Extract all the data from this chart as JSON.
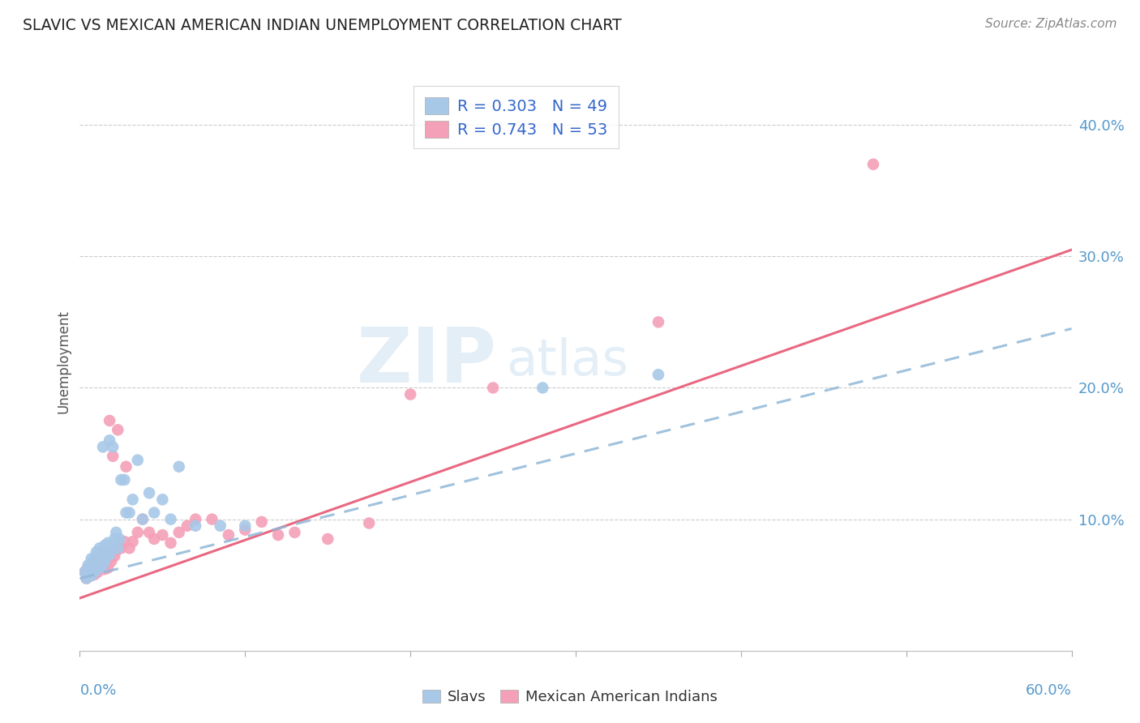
{
  "title": "SLAVIC VS MEXICAN AMERICAN INDIAN UNEMPLOYMENT CORRELATION CHART",
  "source": "Source: ZipAtlas.com",
  "ylabel": "Unemployment",
  "ylabel_right_ticks": [
    "10.0%",
    "20.0%",
    "30.0%",
    "40.0%"
  ],
  "ylabel_right_vals": [
    0.1,
    0.2,
    0.3,
    0.4
  ],
  "xmin": 0.0,
  "xmax": 0.6,
  "ymin": 0.0,
  "ymax": 0.44,
  "slavs_R": 0.303,
  "slavs_N": 49,
  "mexican_R": 0.743,
  "mexican_N": 53,
  "slavs_color": "#a8c8e8",
  "mexican_color": "#f4a0b8",
  "slavs_line_color": "#90b8d8",
  "mexican_line_color": "#e8607a",
  "legend_text_color": "#3366cc",
  "slavs_line_x0": 0.0,
  "slavs_line_y0": 0.055,
  "slavs_line_x1": 0.6,
  "slavs_line_y1": 0.245,
  "mexican_line_x0": 0.0,
  "mexican_line_y0": 0.04,
  "mexican_line_x1": 0.6,
  "mexican_line_y1": 0.305,
  "slavs_x": [
    0.003,
    0.004,
    0.005,
    0.005,
    0.006,
    0.007,
    0.007,
    0.008,
    0.008,
    0.009,
    0.01,
    0.01,
    0.01,
    0.011,
    0.012,
    0.012,
    0.013,
    0.014,
    0.014,
    0.015,
    0.015,
    0.016,
    0.016,
    0.017,
    0.018,
    0.018,
    0.019,
    0.02,
    0.021,
    0.022,
    0.023,
    0.024,
    0.025,
    0.027,
    0.028,
    0.03,
    0.032,
    0.035,
    0.038,
    0.042,
    0.045,
    0.05,
    0.055,
    0.06,
    0.07,
    0.085,
    0.1,
    0.28,
    0.35
  ],
  "slavs_y": [
    0.06,
    0.055,
    0.058,
    0.065,
    0.062,
    0.057,
    0.07,
    0.063,
    0.068,
    0.06,
    0.072,
    0.065,
    0.075,
    0.068,
    0.063,
    0.078,
    0.07,
    0.065,
    0.155,
    0.068,
    0.08,
    0.072,
    0.076,
    0.082,
    0.073,
    0.16,
    0.078,
    0.155,
    0.085,
    0.09,
    0.078,
    0.085,
    0.13,
    0.13,
    0.105,
    0.105,
    0.115,
    0.145,
    0.1,
    0.12,
    0.105,
    0.115,
    0.1,
    0.14,
    0.095,
    0.095,
    0.095,
    0.2,
    0.21
  ],
  "mexican_x": [
    0.003,
    0.004,
    0.005,
    0.005,
    0.006,
    0.007,
    0.007,
    0.008,
    0.008,
    0.009,
    0.01,
    0.01,
    0.011,
    0.012,
    0.013,
    0.014,
    0.015,
    0.015,
    0.016,
    0.017,
    0.018,
    0.018,
    0.019,
    0.02,
    0.021,
    0.022,
    0.023,
    0.025,
    0.027,
    0.028,
    0.03,
    0.032,
    0.035,
    0.038,
    0.042,
    0.045,
    0.05,
    0.055,
    0.06,
    0.065,
    0.07,
    0.08,
    0.09,
    0.1,
    0.11,
    0.12,
    0.13,
    0.15,
    0.175,
    0.2,
    0.25,
    0.48,
    0.35
  ],
  "mexican_y": [
    0.06,
    0.055,
    0.058,
    0.063,
    0.057,
    0.06,
    0.065,
    0.06,
    0.068,
    0.058,
    0.065,
    0.07,
    0.06,
    0.063,
    0.068,
    0.063,
    0.062,
    0.075,
    0.068,
    0.063,
    0.07,
    0.175,
    0.068,
    0.148,
    0.072,
    0.076,
    0.168,
    0.078,
    0.083,
    0.14,
    0.078,
    0.083,
    0.09,
    0.1,
    0.09,
    0.085,
    0.088,
    0.082,
    0.09,
    0.095,
    0.1,
    0.1,
    0.088,
    0.092,
    0.098,
    0.088,
    0.09,
    0.085,
    0.097,
    0.195,
    0.2,
    0.37,
    0.25
  ]
}
